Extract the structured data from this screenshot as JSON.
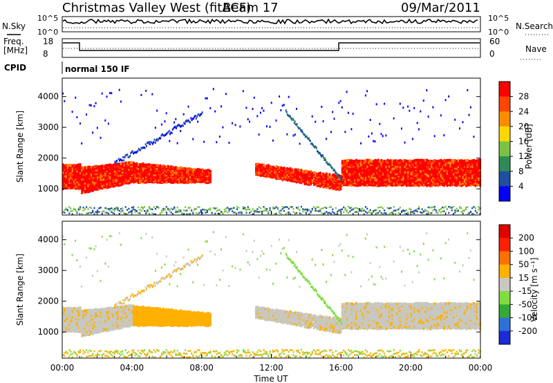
{
  "header": {
    "title": "Christmas Valley West (fitACF)",
    "beam": "Beam 17",
    "date": "09/Mar/2011"
  },
  "status_panels": {
    "nsky": {
      "label": "N.Sky",
      "ticks_left": [
        "10^5",
        "10^0"
      ]
    },
    "nsearch": {
      "label": "N.Search",
      "ticks_right": [
        "10^5",
        "10^0"
      ]
    },
    "freq": {
      "label_line1": "Freq.",
      "label_line2": "[MHz]",
      "ticks_left": [
        "18",
        "8"
      ]
    },
    "nave": {
      "label": "Nave",
      "ticks_right": [
        "60",
        "0"
      ]
    },
    "cpid": {
      "label": "CPID",
      "mode": "normal 150 IF"
    }
  },
  "colors": {
    "power_scale": [
      "#0000ff",
      "#1e4fa0",
      "#2e8b57",
      "#7cc242",
      "#ffd700",
      "#ff8c00",
      "#ff4500",
      "#ff0000"
    ],
    "velocity_scale": [
      "#1a2bd8",
      "#2f6fd8",
      "#33aa33",
      "#80dd40",
      "#c8c8c0",
      "#ffb000",
      "#ff7000",
      "#ff2000",
      "#e00000"
    ]
  },
  "chart_data": [
    {
      "type": "heatmap",
      "name": "power",
      "xlabel": "Time UT",
      "ylabel": "Slant Range [km]",
      "x_ticks": [
        "00:00",
        "04:00",
        "08:00",
        "12:00",
        "16:00",
        "20:00",
        "00:00"
      ],
      "y_ticks": [
        1000,
        2000,
        3000,
        4000
      ],
      "ylim": [
        150,
        4600
      ],
      "colorbar": {
        "label": "Power [dB]",
        "ticks": [
          4,
          8,
          12,
          16,
          20,
          24,
          28
        ]
      }
    },
    {
      "type": "heatmap",
      "name": "velocity",
      "xlabel": "Time UT",
      "ylabel": "Slant Range [km]",
      "x_ticks": [
        "00:00",
        "04:00",
        "08:00",
        "12:00",
        "16:00",
        "20:00",
        "00:00"
      ],
      "y_ticks": [
        1000,
        2000,
        3000,
        4000
      ],
      "ylim": [
        150,
        4600
      ],
      "colorbar": {
        "label": "Velocity [m s⁻¹]",
        "ticks": [
          200,
          100,
          50,
          15,
          -15,
          -50,
          -100,
          -200
        ]
      }
    }
  ]
}
